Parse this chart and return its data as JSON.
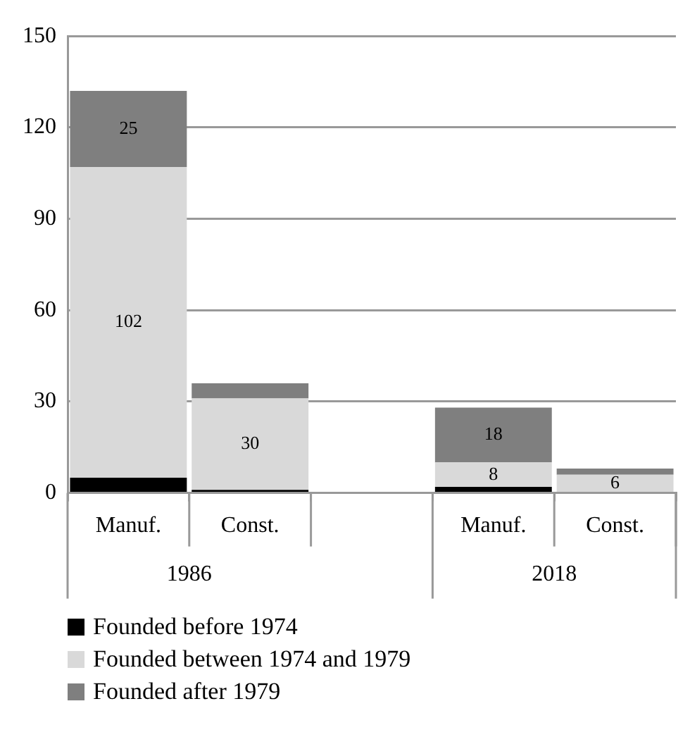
{
  "chart_data": {
    "type": "bar",
    "stacked": true,
    "categories": [
      "Manuf.",
      "Const.",
      null,
      "Manuf.",
      "Const."
    ],
    "series": [
      {
        "name": "Founded before 1974",
        "color": "#000000",
        "values": [
          5,
          1,
          null,
          2,
          0
        ]
      },
      {
        "name": "Founded between 1974 and 1979",
        "color": "#d9d9d9",
        "values": [
          102,
          30,
          null,
          8,
          6
        ],
        "value_labels": [
          "102",
          "30",
          null,
          "8",
          "6"
        ]
      },
      {
        "name": "Founded after 1979",
        "color": "#7f7f7f",
        "values": [
          25,
          5,
          null,
          18,
          2
        ],
        "value_labels": [
          "25",
          null,
          null,
          "18",
          null
        ]
      }
    ],
    "annotations": [
      "1986",
      "2018"
    ],
    "ylim": [
      0,
      150
    ],
    "yticks": [
      0,
      30,
      60,
      90,
      120,
      150
    ],
    "grid": "y",
    "legend": "bottom"
  }
}
